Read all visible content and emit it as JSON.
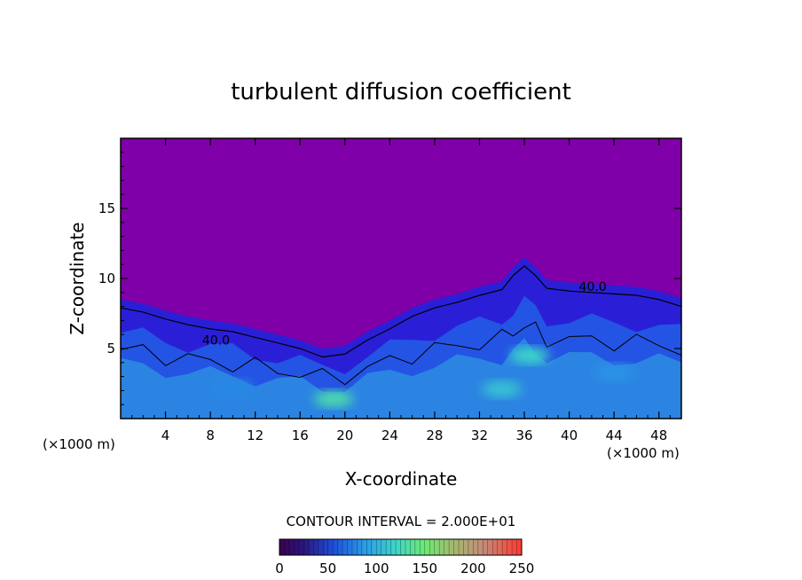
{
  "chart_data": {
    "type": "heatmap",
    "title": "turbulent diffusion coefficient",
    "xlabel": "X-coordinate",
    "ylabel": "Z-coordinate",
    "x_unit_left": "(×1000 m)",
    "x_unit_right": "(×1000 m)",
    "xlim": [
      0,
      50
    ],
    "ylim": [
      0,
      20
    ],
    "x_ticks": [
      4,
      8,
      12,
      16,
      20,
      24,
      28,
      32,
      36,
      40,
      44,
      48
    ],
    "y_ticks": [
      5,
      10,
      15
    ],
    "contour_interval_text": "CONTOUR INTERVAL = 2.000E+01",
    "contour_labels": [
      {
        "text": "40.0",
        "x": 42.1,
        "z": 9.1
      },
      {
        "text": "40.0",
        "x": 8.5,
        "z": 5.3
      }
    ],
    "colorbar": {
      "min": 0,
      "max": 250,
      "tick_values": [
        0,
        50,
        100,
        150,
        200,
        250
      ],
      "tick_labels": [
        "0",
        "50",
        "100",
        "150",
        "200",
        "250"
      ]
    },
    "boundary_layer_top": [
      [
        0,
        8.5
      ],
      [
        2,
        8.2
      ],
      [
        4,
        7.7
      ],
      [
        6,
        7.3
      ],
      [
        8,
        7.0
      ],
      [
        10,
        6.8
      ],
      [
        12,
        6.4
      ],
      [
        14,
        6.0
      ],
      [
        16,
        5.6
      ],
      [
        18,
        5.0
      ],
      [
        20,
        5.2
      ],
      [
        22,
        6.2
      ],
      [
        24,
        7.0
      ],
      [
        26,
        7.9
      ],
      [
        28,
        8.5
      ],
      [
        30,
        8.9
      ],
      [
        32,
        9.4
      ],
      [
        34,
        9.8
      ],
      [
        35,
        10.8
      ],
      [
        36,
        11.5
      ],
      [
        37,
        10.8
      ],
      [
        38,
        9.9
      ],
      [
        40,
        9.7
      ],
      [
        42,
        9.6
      ],
      [
        44,
        9.5
      ],
      [
        46,
        9.4
      ],
      [
        48,
        9.1
      ],
      [
        50,
        8.6
      ]
    ],
    "highlights": [
      {
        "x": 34,
        "z": 2.1,
        "value": 110
      },
      {
        "x": 19,
        "z": 1.4,
        "value": 130
      },
      {
        "x": 44,
        "z": 3.3,
        "value": 85
      },
      {
        "x": 10,
        "z": 2.2,
        "value": 80
      },
      {
        "x": 36.5,
        "z": 4.5,
        "value": 120
      }
    ],
    "colors": {
      "background": "#7f00a8",
      "field_low": "#2a1fd6",
      "field_mid": "#1f7ff0",
      "field_high": "#38e0e0",
      "field_peak": "#7dff60"
    }
  }
}
